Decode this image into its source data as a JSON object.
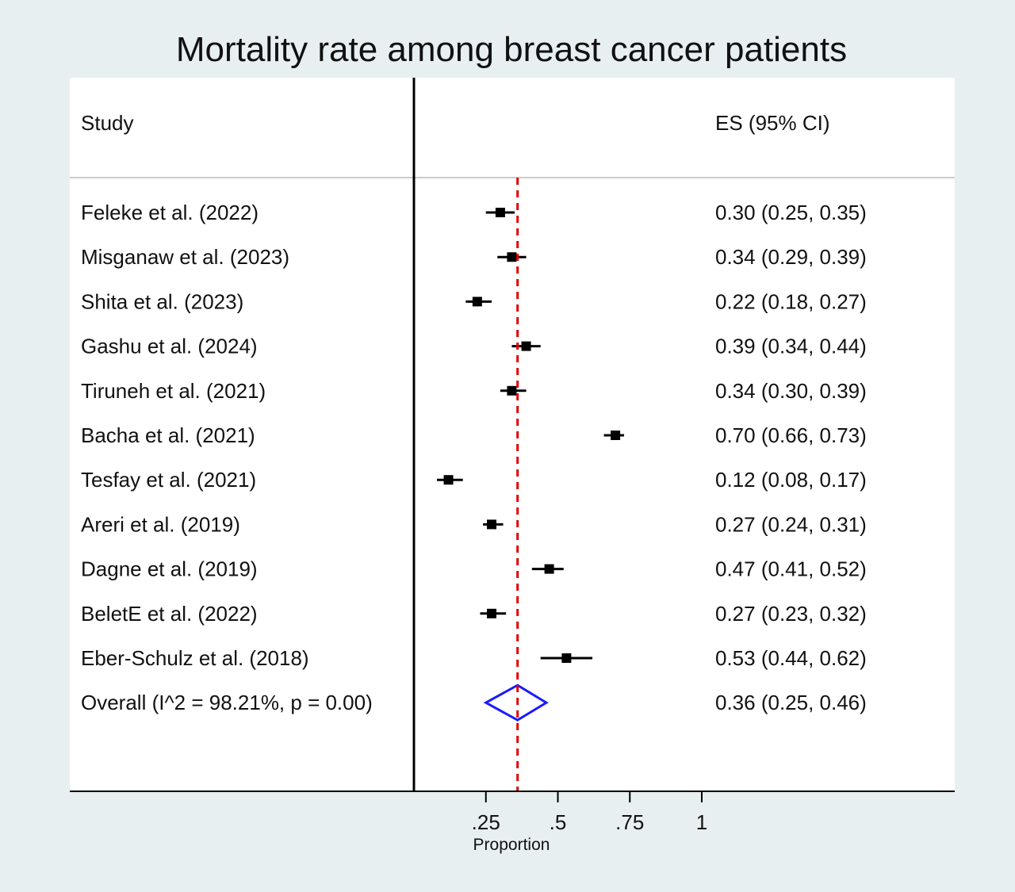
{
  "chart_data": {
    "type": "forest",
    "title": "Mortality rate among breast cancer patients",
    "column_headers": {
      "study": "Study",
      "effect": "ES (95% CI)"
    },
    "xlabel": "Proportion",
    "x_ticks": [
      {
        "value": 0.25,
        "label": ".25"
      },
      {
        "value": 0.5,
        "label": ".5"
      },
      {
        "value": 0.75,
        "label": ".75"
      },
      {
        "value": 1,
        "label": "1"
      }
    ],
    "null_line": 0,
    "studies": [
      {
        "label": "Feleke et al. (2022)",
        "es": 0.3,
        "lo": 0.25,
        "hi": 0.35,
        "text": "0.30 (0.25, 0.35)"
      },
      {
        "label": "Misganaw et al. (2023)",
        "es": 0.34,
        "lo": 0.29,
        "hi": 0.39,
        "text": "0.34 (0.29, 0.39)"
      },
      {
        "label": "Shita et al. (2023)",
        "es": 0.22,
        "lo": 0.18,
        "hi": 0.27,
        "text": "0.22 (0.18, 0.27)"
      },
      {
        "label": "Gashu et al.  (2024)",
        "es": 0.39,
        "lo": 0.34,
        "hi": 0.44,
        "text": "0.39 (0.34, 0.44)"
      },
      {
        "label": "Tiruneh et al. (2021)",
        "es": 0.34,
        "lo": 0.3,
        "hi": 0.39,
        "text": "0.34 (0.30, 0.39)"
      },
      {
        "label": "Bacha  et al. (2021)",
        "es": 0.7,
        "lo": 0.66,
        "hi": 0.73,
        "text": "0.70 (0.66, 0.73)"
      },
      {
        "label": "Tesfay et al. (2021)",
        "es": 0.12,
        "lo": 0.08,
        "hi": 0.17,
        "text": "0.12 (0.08, 0.17)"
      },
      {
        "label": "Areri  et al. (2019)",
        "es": 0.27,
        "lo": 0.24,
        "hi": 0.31,
        "text": "0.27 (0.24, 0.31)"
      },
      {
        "label": "Dagne et al. (2019)",
        "es": 0.47,
        "lo": 0.41,
        "hi": 0.52,
        "text": "0.47 (0.41, 0.52)"
      },
      {
        "label": "BeletE et al. (2022)",
        "es": 0.27,
        "lo": 0.23,
        "hi": 0.32,
        "text": "0.27 (0.23, 0.32)"
      },
      {
        "label": "Eber-Schulz et al. (2018)",
        "es": 0.53,
        "lo": 0.44,
        "hi": 0.62,
        "text": "0.53 (0.44, 0.62)"
      }
    ],
    "overall": {
      "label": "Overall  (I^2 = 98.21%, p = 0.00)",
      "es": 0.36,
      "lo": 0.25,
      "hi": 0.46,
      "text": "0.36 (0.25, 0.46)"
    },
    "colors": {
      "marker": "#000000",
      "overall_diamond": "#1a1aff",
      "overall_line": "#e00000",
      "grid": "#cccccc"
    }
  }
}
